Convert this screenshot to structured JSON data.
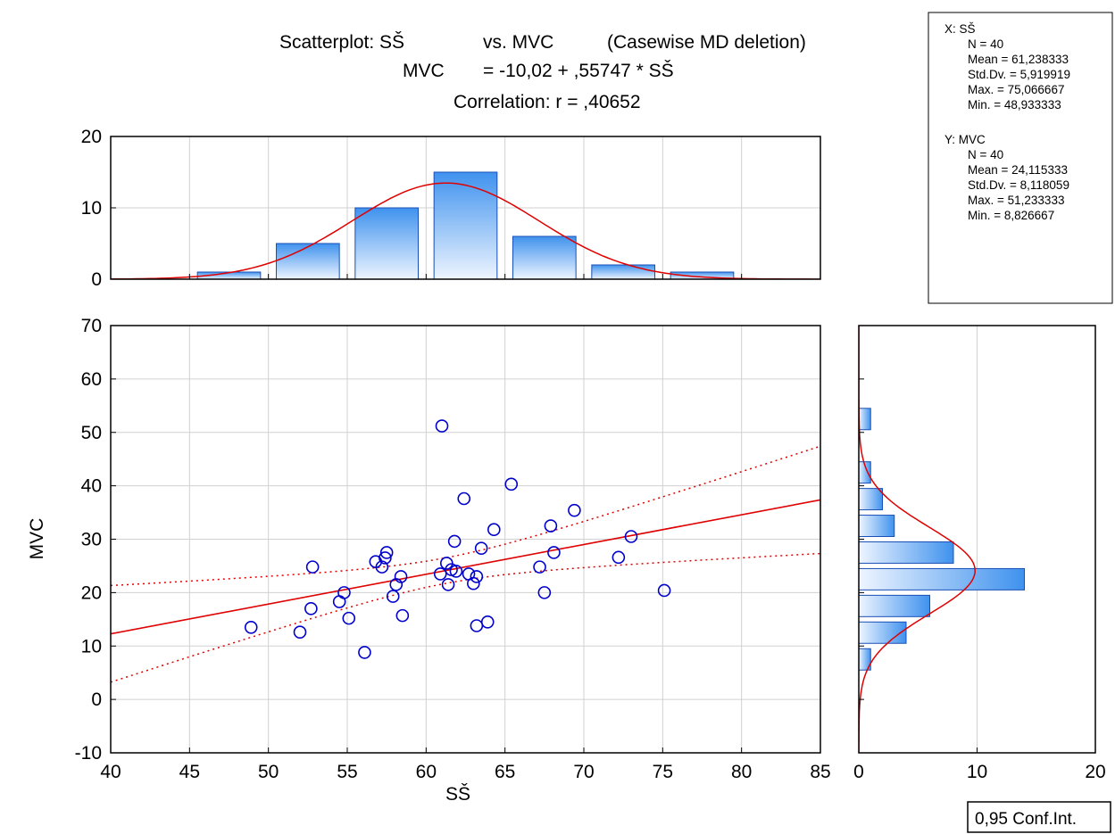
{
  "title": {
    "line1_a": "Scatterplot: SŠ",
    "line1_b": "vs. MVC",
    "line1_c": "(Casewise MD deletion)",
    "line2_a": "MVC",
    "line2_b": "= -10,02 + ,55747 * SŠ",
    "line3": "Correlation: r = ,40652"
  },
  "stats": {
    "x_header": "X:  SŠ",
    "x_lines": [
      "N = 40",
      "Mean = 61,238333",
      "Std.Dv. = 5,919919",
      "Max. = 75,066667",
      "Min. = 48,933333"
    ],
    "y_header": "Y:  MVC",
    "y_lines": [
      "N = 40",
      "Mean = 24,115333",
      "Std.Dv. = 8,118059",
      "Max. = 51,233333",
      "Min. = 8,826667"
    ]
  },
  "legend": {
    "label": "0,95 Conf.Int."
  },
  "colors": {
    "points": "#0000cc",
    "fit": "#e00000",
    "bar_edge": "#1a4fb5",
    "bar_light": "#eef5ff",
    "bar_dark": "#3f92ee"
  },
  "chart_data": [
    {
      "type": "scatter",
      "xlabel": "SŠ",
      "ylabel": "MVC",
      "xlim": [
        40,
        85
      ],
      "ylim": [
        -10,
        70
      ],
      "xticks": [
        40,
        45,
        50,
        55,
        60,
        65,
        70,
        75,
        80,
        85
      ],
      "yticks": [
        -10,
        0,
        10,
        20,
        30,
        40,
        50,
        60,
        70
      ],
      "grid": true,
      "points": [
        [
          48.9,
          13.5
        ],
        [
          52.0,
          12.6
        ],
        [
          52.7,
          17.0
        ],
        [
          52.8,
          24.8
        ],
        [
          54.5,
          18.3
        ],
        [
          54.8,
          20.0
        ],
        [
          55.1,
          15.2
        ],
        [
          56.1,
          8.8
        ],
        [
          56.8,
          25.8
        ],
        [
          57.2,
          24.8
        ],
        [
          57.4,
          26.5
        ],
        [
          57.5,
          27.5
        ],
        [
          57.9,
          19.3
        ],
        [
          58.1,
          21.5
        ],
        [
          58.4,
          23.0
        ],
        [
          58.5,
          15.7
        ],
        [
          60.9,
          23.5
        ],
        [
          61.0,
          51.2
        ],
        [
          61.3,
          25.5
        ],
        [
          61.4,
          21.5
        ],
        [
          61.6,
          24.3
        ],
        [
          61.8,
          29.6
        ],
        [
          61.9,
          24.0
        ],
        [
          62.4,
          37.6
        ],
        [
          62.7,
          23.5
        ],
        [
          63.0,
          21.7
        ],
        [
          63.2,
          13.8
        ],
        [
          63.2,
          23.0
        ],
        [
          63.5,
          28.3
        ],
        [
          63.9,
          14.5
        ],
        [
          64.3,
          31.8
        ],
        [
          65.4,
          40.3
        ],
        [
          67.2,
          24.8
        ],
        [
          67.5,
          20.0
        ],
        [
          67.9,
          32.5
        ],
        [
          68.1,
          27.5
        ],
        [
          69.4,
          35.4
        ],
        [
          72.2,
          26.6
        ],
        [
          73.0,
          30.5
        ],
        [
          75.1,
          20.4
        ]
      ],
      "fit": {
        "intercept": -10.02,
        "slope": 0.55747
      },
      "conf_band": {
        "level": 0.95,
        "x_mean": 61.238333,
        "x_sd": 5.919919,
        "n": 40,
        "resid_se": 7.5,
        "t": 2.024
      }
    },
    {
      "type": "bar",
      "title": "",
      "xlim": [
        40,
        85
      ],
      "ylim": [
        0,
        20
      ],
      "yticks": [
        0,
        10,
        20
      ],
      "bins": [
        {
          "from": 45,
          "to": 50,
          "count": 1
        },
        {
          "from": 50,
          "to": 55,
          "count": 5
        },
        {
          "from": 55,
          "to": 60,
          "count": 10
        },
        {
          "from": 60,
          "to": 65,
          "count": 15
        },
        {
          "from": 65,
          "to": 70,
          "count": 6
        },
        {
          "from": 70,
          "to": 75,
          "count": 2
        },
        {
          "from": 75,
          "to": 80,
          "count": 1
        }
      ],
      "normal_curve": {
        "mean": 61.238333,
        "sd": 5.919919,
        "n": 40,
        "bin_width": 5
      }
    },
    {
      "type": "bar",
      "orientation": "horizontal",
      "xlim": [
        0,
        20
      ],
      "xticks": [
        0,
        10,
        20
      ],
      "ylim": [
        -10,
        70
      ],
      "bins": [
        {
          "from": 5,
          "to": 10,
          "count": 1
        },
        {
          "from": 10,
          "to": 15,
          "count": 4
        },
        {
          "from": 15,
          "to": 20,
          "count": 6
        },
        {
          "from": 20,
          "to": 25,
          "count": 14
        },
        {
          "from": 25,
          "to": 30,
          "count": 8
        },
        {
          "from": 30,
          "to": 35,
          "count": 3
        },
        {
          "from": 35,
          "to": 40,
          "count": 2
        },
        {
          "from": 40,
          "to": 45,
          "count": 1
        },
        {
          "from": 50,
          "to": 55,
          "count": 1
        }
      ],
      "normal_curve": {
        "mean": 24.115333,
        "sd": 8.118059,
        "n": 40,
        "bin_width": 5
      }
    }
  ]
}
